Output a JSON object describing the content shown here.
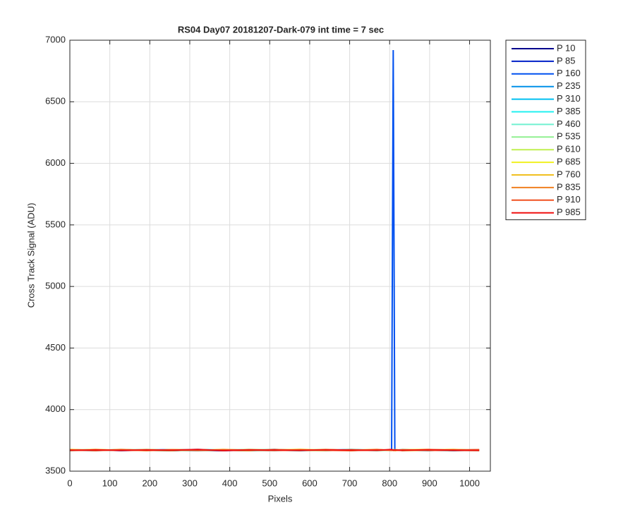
{
  "chart_data": {
    "type": "line",
    "title": "RS04 Day07 20181207-Dark-079 int time = 7 sec",
    "x_label": "Pixels",
    "y_label": "Cross Track Signal (ADU)",
    "x": [
      0,
      64,
      128,
      192,
      256,
      320,
      384,
      448,
      512,
      576,
      640,
      704,
      768,
      805,
      809,
      813,
      832,
      896,
      960,
      1024
    ],
    "xlim": [
      0,
      1052
    ],
    "xticks": [
      0,
      100,
      200,
      300,
      400,
      500,
      600,
      700,
      800,
      900,
      1000
    ],
    "ylim": [
      3500,
      7000
    ],
    "yticks": [
      3500,
      4000,
      4500,
      5000,
      5500,
      6000,
      6500,
      7000
    ],
    "grid": true,
    "legend": "outside-right-top",
    "series": [
      {
        "name": "P 10",
        "color": "#00008c",
        "values": [
          3672,
          3668,
          3675,
          3670,
          3666,
          3673,
          3671,
          3669,
          3676,
          3668,
          3672,
          3670,
          3674,
          3669,
          3671,
          3668,
          3673,
          3670,
          3667,
          3672
        ]
      },
      {
        "name": "P 85",
        "color": "#0020c8",
        "values": [
          3670,
          3674,
          3667,
          3672,
          3675,
          3669,
          3666,
          3673,
          3670,
          3674,
          3668,
          3671,
          3669,
          3673,
          3670,
          3672,
          3668,
          3674,
          3671,
          3669
        ]
      },
      {
        "name": "P 160",
        "color": "#0050f0",
        "values": [
          3675,
          3669,
          3672,
          3668,
          3671,
          3676,
          3670,
          3667,
          3673,
          3669,
          3675,
          3668,
          3672,
          3670,
          6920,
          3671,
          3669,
          3673,
          3668,
          3674
        ]
      },
      {
        "name": "P 235",
        "color": "#0090e8",
        "values": [
          3668,
          3672,
          3670,
          3675,
          3669,
          3667,
          3674,
          3671,
          3668,
          3672,
          3670,
          3676,
          3669,
          3673,
          3670,
          3668,
          3675,
          3669,
          3672,
          3670
        ]
      },
      {
        "name": "P 310",
        "color": "#00c0f0",
        "values": [
          3671,
          3667,
          3674,
          3669,
          3673,
          3670,
          3668,
          3675,
          3671,
          3666,
          3673,
          3669,
          3672,
          3668,
          3674,
          3670,
          3671,
          3667,
          3675,
          3669
        ]
      },
      {
        "name": "P 385",
        "color": "#20f0f0",
        "values": [
          3669,
          3675,
          3668,
          3671,
          3670,
          3674,
          3672,
          3666,
          3670,
          3675,
          3669,
          3673,
          3667,
          3671,
          3669,
          3675,
          3668,
          3672,
          3670,
          3673
        ]
      },
      {
        "name": "P 460",
        "color": "#70f0d0",
        "values": [
          3674,
          3670,
          3669,
          3676,
          3668,
          3671,
          3675,
          3670,
          3667,
          3673,
          3671,
          3668,
          3674,
          3670,
          3672,
          3669,
          3676,
          3671,
          3668,
          3671
        ]
      },
      {
        "name": "P 535",
        "color": "#90f090",
        "values": [
          3667,
          3673,
          3671,
          3669,
          3674,
          3668,
          3670,
          3676,
          3672,
          3669,
          3667,
          3674,
          3670,
          3675,
          3668,
          3671,
          3670,
          3674,
          3669,
          3667
        ]
      },
      {
        "name": "P 610",
        "color": "#c0f050",
        "values": [
          3673,
          3668,
          3676,
          3670,
          3667,
          3675,
          3669,
          3671,
          3674,
          3670,
          3676,
          3667,
          3673,
          3669,
          3671,
          3674,
          3667,
          3670,
          3675,
          3672
        ]
      },
      {
        "name": "P 685",
        "color": "#f0f020",
        "values": [
          3670,
          3676,
          3669,
          3673,
          3671,
          3668,
          3676,
          3669,
          3671,
          3677,
          3670,
          3672,
          3668,
          3674,
          3670,
          3667,
          3673,
          3676,
          3669,
          3674
        ]
      },
      {
        "name": "P 760",
        "color": "#f0c020",
        "values": [
          3676,
          3669,
          3673,
          3667,
          3675,
          3671,
          3668,
          3674,
          3670,
          3668,
          3675,
          3670,
          3676,
          3668,
          3673,
          3671,
          3669,
          3672,
          3676,
          3668
        ]
      },
      {
        "name": "P 835",
        "color": "#f08020",
        "values": [
          3668,
          3674,
          3670,
          3675,
          3669,
          3673,
          3670,
          3667,
          3675,
          3671,
          3669,
          3674,
          3670,
          3672,
          3668,
          3674,
          3671,
          3669,
          3673,
          3670
        ]
      },
      {
        "name": "P 910",
        "color": "#f05020",
        "values": [
          3672,
          3667,
          3675,
          3669,
          3673,
          3669,
          3674,
          3671,
          3668,
          3674,
          3670,
          3667,
          3675,
          3670,
          3673,
          3669,
          3674,
          3668,
          3671,
          3675
        ]
      },
      {
        "name": "P 985",
        "color": "#f01010",
        "values": [
          3669,
          3673,
          3668,
          3672,
          3670,
          3676,
          3667,
          3673,
          3671,
          3668,
          3674,
          3671,
          3669,
          3676,
          3670,
          3672,
          3668,
          3675,
          3670,
          3668
        ]
      }
    ]
  }
}
